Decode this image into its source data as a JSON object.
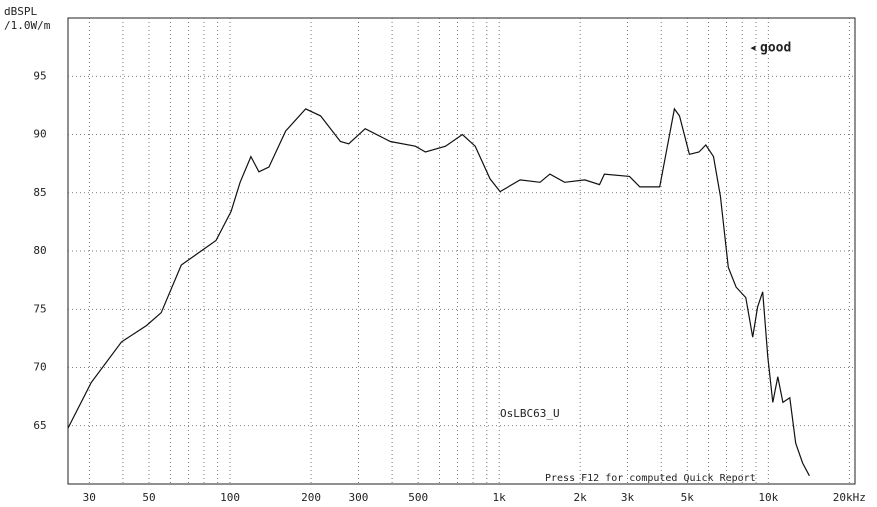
{
  "chart_data": {
    "type": "line",
    "y_label_lines": [
      "dBSPL",
      "/1.0W/m"
    ],
    "annotations": [
      "good",
      "OsLBC63_U",
      "Press F12 for computed Quick Report"
    ],
    "log_x": true,
    "grid": true,
    "xlim": [
      25,
      21000
    ],
    "ylim": [
      60,
      100
    ],
    "xticks": [
      30,
      50,
      100,
      200,
      300,
      500,
      {
        "value": 1000,
        "label": "1k"
      },
      {
        "value": 2000,
        "label": "2k"
      },
      {
        "value": 3000,
        "label": "3k"
      },
      {
        "value": 5000,
        "label": "5k"
      },
      {
        "value": 10000,
        "label": "10k"
      },
      {
        "value": 20000,
        "label": "20kHz"
      }
    ],
    "xminor": [
      40,
      60,
      70,
      80,
      90,
      400,
      600,
      700,
      800,
      900,
      4000,
      6000,
      7000,
      8000,
      9000
    ],
    "yticks": [
      65,
      70,
      75,
      80,
      85,
      90,
      95
    ],
    "series": [
      {
        "name": "OsLBC63_U",
        "color": "#111111",
        "x": [
          25,
          30.5,
          39.5,
          48.9,
          55.5,
          65.9,
          74.9,
          88.7,
          100.9,
          109,
          119.6,
          128,
          139.5,
          161,
          191,
          217,
          257,
          276,
          318,
          394,
          488,
          532,
          632,
          730,
          815,
          925,
          1008,
          1196,
          1418,
          1544,
          1752,
          2080,
          2360,
          2460,
          3050,
          3330,
          3950,
          4220,
          4480,
          4680,
          5090,
          5530,
          5860,
          6260,
          6640,
          7100,
          7590,
          8250,
          8750,
          9130,
          9530,
          9960,
          10390,
          10850,
          11330,
          12020,
          12640,
          13410,
          14220
        ],
        "values": [
          64.8,
          68.7,
          72.2,
          73.6,
          74.7,
          78.8,
          79.7,
          80.9,
          83.4,
          85.9,
          88.1,
          86.8,
          87.2,
          90.3,
          92.2,
          91.6,
          89.4,
          89.2,
          90.5,
          89.4,
          89.0,
          88.5,
          89.0,
          90.0,
          89.0,
          86.2,
          85.1,
          86.1,
          85.9,
          86.6,
          85.9,
          86.1,
          85.7,
          86.6,
          86.4,
          85.5,
          85.5,
          89.0,
          92.2,
          91.6,
          88.3,
          88.5,
          89.1,
          88.1,
          84.7,
          78.6,
          76.9,
          76.0,
          72.6,
          75.2,
          76.5,
          70.9,
          67.0,
          69.2,
          67.0,
          67.4,
          63.5,
          61.8,
          60.7
        ]
      }
    ]
  }
}
